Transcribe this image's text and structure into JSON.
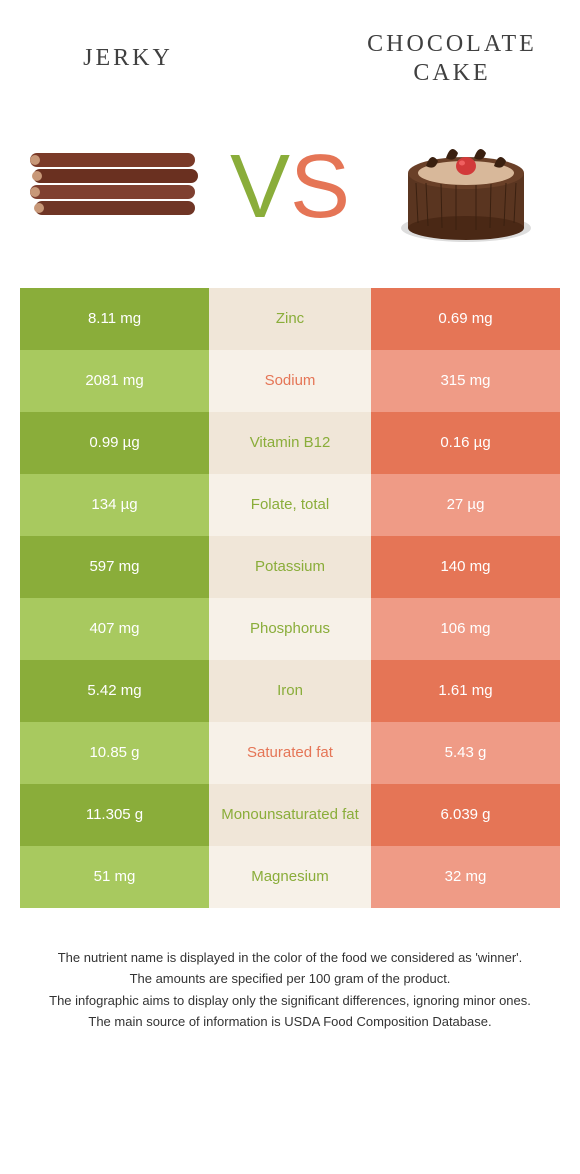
{
  "titles": {
    "left": "Jerky",
    "right": "Chocolate cake"
  },
  "vs": {
    "v": "V",
    "s": "S"
  },
  "colors": {
    "green_dark": "#8aad3a",
    "green_light": "#a8c95f",
    "orange_dark": "#e57556",
    "orange_light": "#ef9b86",
    "mid_dark": "#f0e6d8",
    "mid_light": "#f7f1e8",
    "text_green": "#8aad3a",
    "text_orange": "#e57556"
  },
  "rows": [
    {
      "left": "8.11 mg",
      "mid": "Zinc",
      "right": "0.69 mg",
      "winner": "left"
    },
    {
      "left": "2081 mg",
      "mid": "Sodium",
      "right": "315 mg",
      "winner": "right"
    },
    {
      "left": "0.99 µg",
      "mid": "Vitamin B12",
      "right": "0.16 µg",
      "winner": "left"
    },
    {
      "left": "134 µg",
      "mid": "Folate, total",
      "right": "27 µg",
      "winner": "left"
    },
    {
      "left": "597 mg",
      "mid": "Potassium",
      "right": "140 mg",
      "winner": "left"
    },
    {
      "left": "407 mg",
      "mid": "Phosphorus",
      "right": "106 mg",
      "winner": "left"
    },
    {
      "left": "5.42 mg",
      "mid": "Iron",
      "right": "1.61 mg",
      "winner": "left"
    },
    {
      "left": "10.85 g",
      "mid": "Saturated fat",
      "right": "5.43 g",
      "winner": "right"
    },
    {
      "left": "11.305 g",
      "mid": "Monounsaturated fat",
      "right": "6.039 g",
      "winner": "left"
    },
    {
      "left": "51 mg",
      "mid": "Magnesium",
      "right": "32 mg",
      "winner": "left"
    }
  ],
  "footer": [
    "The nutrient name is displayed in the color of the food we considered as 'winner'.",
    "The amounts are specified per 100 gram of the product.",
    "The infographic aims to display only the significant differences, ignoring minor ones.",
    "The main source of information is USDA Food Composition Database."
  ]
}
